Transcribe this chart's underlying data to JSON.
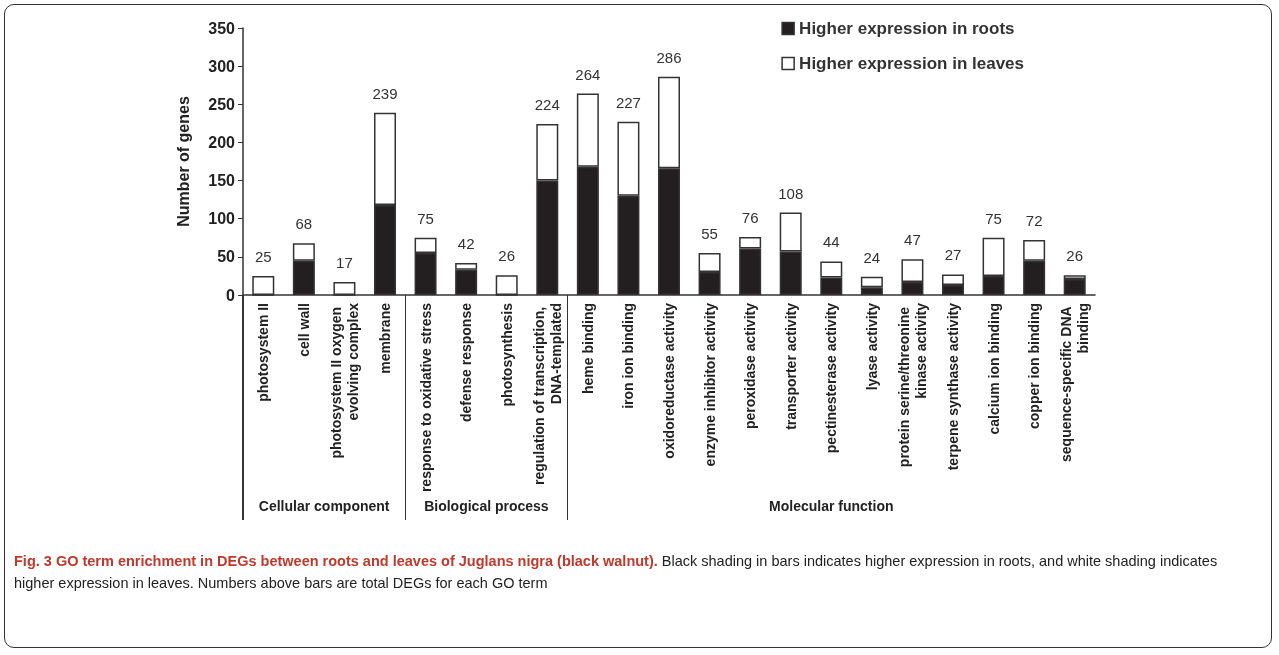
{
  "chart_data": {
    "type": "bar",
    "stacked": true,
    "title": "Fig. 3 GO term enrichment in DEGs between roots and leaves of Juglans nigra (black walnut).",
    "ylabel": "Number of genes",
    "categories": [
      "photosystem II",
      "cell wall",
      "photosystem II oxygen evolving complex",
      "membrane",
      "response to oxidative stress",
      "defense response",
      "photosynthesis",
      "regulation of transcription, DNA-templated",
      "heme binding",
      "iron ion binding",
      "oxidoreductase activity",
      "enzyme inhibitor activity",
      "peroxidase activity",
      "transporter activity",
      "pectinesterase activity",
      "lyase activity",
      "protein serine/threonine kinase activity",
      "terpene synthase activity",
      "calcium ion binding",
      "copper ion binding",
      "sequence-specific DNA binding"
    ],
    "series": [
      {
        "name": "Higher expression in roots",
        "color": "#231f20",
        "values": [
          0,
          45,
          0,
          118,
          55,
          33,
          0,
          150,
          168,
          130,
          166,
          30,
          61,
          57,
          23,
          10,
          17,
          13,
          25,
          45,
          21
        ]
      },
      {
        "name": "Higher expression in leaves",
        "color": "#ffffff",
        "values": [
          25,
          23,
          17,
          121,
          20,
          9,
          26,
          74,
          96,
          97,
          120,
          25,
          15,
          51,
          21,
          14,
          30,
          14,
          50,
          27,
          5
        ]
      }
    ],
    "totals": [
      "25",
      "68",
      "17",
      "239",
      "75",
      "42",
      "26",
      "224",
      "264",
      "227",
      "286",
      "55",
      "76",
      "108",
      "44",
      "24",
      "47",
      "27",
      "75",
      "72",
      "26"
    ],
    "ylim": [
      0,
      350
    ],
    "yticks": [
      0,
      50,
      100,
      150,
      200,
      250,
      300,
      350
    ],
    "grid": false,
    "legend": "top right",
    "annotations": [
      "Cellular component",
      "Biological process",
      "Molecular function",
      "Black shading in bars indicates higher expression in roots, and white shading indicates higher expression in leaves. Numbers above bars are total DEGs for each GO term"
    ]
  }
}
